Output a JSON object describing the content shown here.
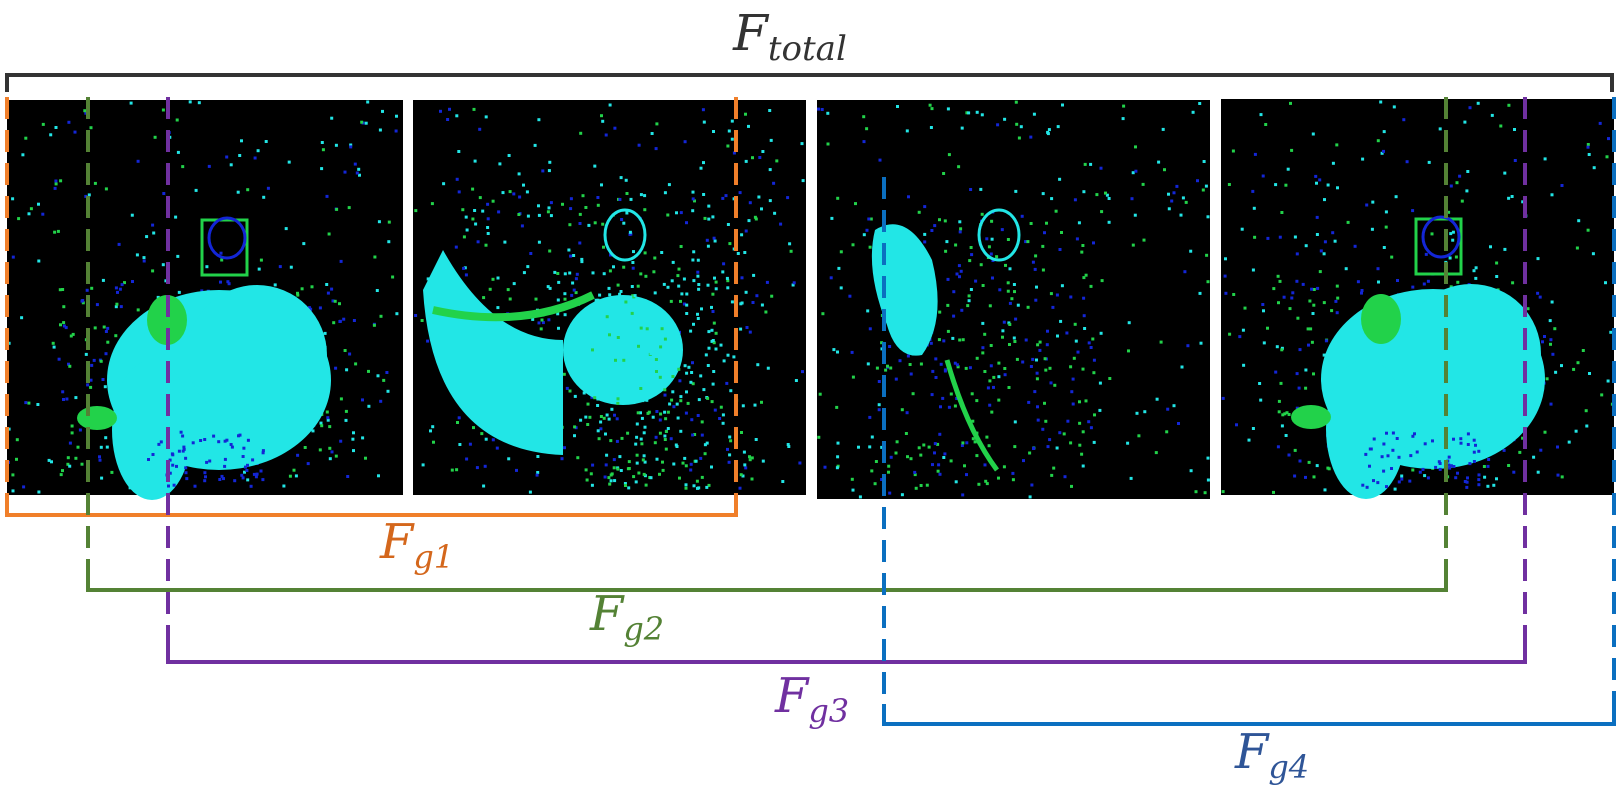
{
  "labels": {
    "total": {
      "main": "F",
      "sub": "total"
    },
    "g1": {
      "main": "F",
      "sub": "g1"
    },
    "g2": {
      "main": "F",
      "sub": "g2"
    },
    "g3": {
      "main": "F",
      "sub": "g3"
    },
    "g4": {
      "main": "F",
      "sub": "g4"
    }
  },
  "colors": {
    "total": "#333333",
    "g1": "#f07f2a",
    "g1_label": "#d4671c",
    "g2": "#548235",
    "g3": "#7030a0",
    "g4": "#0b6fc0",
    "g4_label": "#2f5597",
    "frame_bg": "#000000",
    "cyan": "#22e6e6",
    "blue": "#1326d6",
    "green": "#22d24a"
  },
  "frames": [
    {
      "name": "frame-1",
      "scene": "arms-raised"
    },
    {
      "name": "frame-2",
      "scene": "bending"
    },
    {
      "name": "frame-3",
      "scene": "side-pose"
    },
    {
      "name": "frame-4",
      "scene": "arms-raised"
    }
  ]
}
